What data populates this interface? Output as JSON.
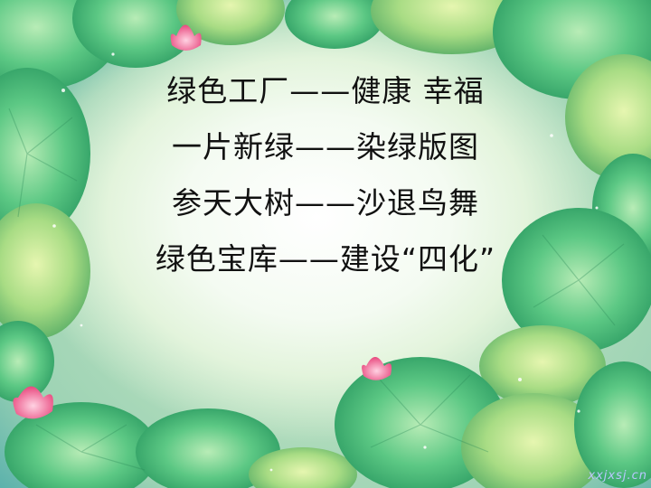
{
  "slide": {
    "lines": [
      "绿色工厂——健康 幸福",
      "一片新绿——染绿版图",
      "参天大树——沙退鸟舞",
      "绿色宝库——建设“四化”"
    ],
    "watermark": "xxjxsj.cn"
  },
  "decoration": {
    "leaf_color": "#4fc27e",
    "leaf_light_color": "#9ee0a8",
    "flower_color": "#f06a9a",
    "water_color": "#0d6d80"
  }
}
